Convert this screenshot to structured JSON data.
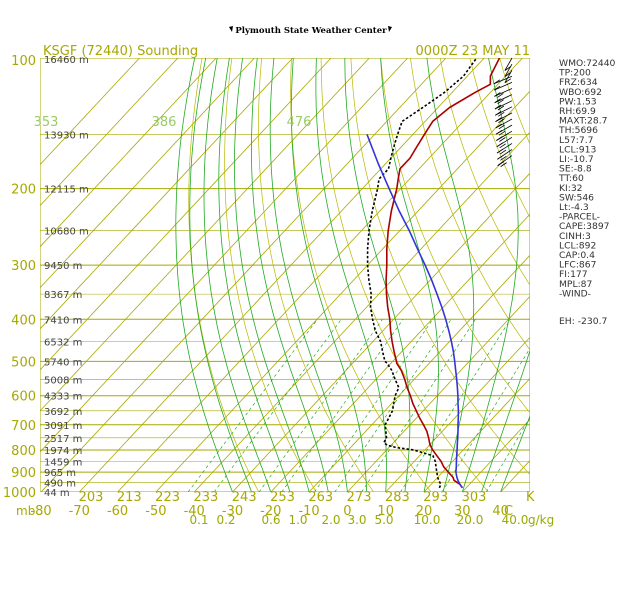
{
  "header": {
    "title": "Plymouth State Weather Center"
  },
  "chart_data": {
    "type": "line",
    "title": "KSGF (72440) Sounding",
    "time_label": "0000Z 23 MAY 11",
    "pressure_ticks": [
      100,
      200,
      300,
      400,
      500,
      600,
      700,
      800,
      900,
      1000
    ],
    "pressure_unit": "mb",
    "kelvin_ticks": [
      "203",
      "213",
      "223",
      "233",
      "243",
      "253",
      "263",
      "273",
      "283",
      "293",
      "303"
    ],
    "kelvin_unit": "K",
    "celsius_ticks": [
      "-80",
      "-70",
      "-60",
      "-50",
      "-40",
      "-30",
      "-20",
      "-10",
      "0",
      "10",
      "20",
      "30",
      "40"
    ],
    "celsius_unit": "C",
    "mixing_ratio_ticks": [
      "0.1",
      "0.2",
      "0.6",
      "1.0",
      "2.0",
      "3.0",
      "5.0",
      "10.0",
      "20.0",
      "40.0"
    ],
    "mixing_ratio_unit": "g/kg",
    "theta_labels": [
      "353",
      "386",
      "476"
    ],
    "height_labels": [
      {
        "p": 100,
        "label": "16460 m"
      },
      {
        "p": 150,
        "label": "13930 m"
      },
      {
        "p": 200,
        "label": "12115 m"
      },
      {
        "p": 250,
        "label": "10680 m"
      },
      {
        "p": 300,
        "label": "9450 m"
      },
      {
        "p": 350,
        "label": "8367 m"
      },
      {
        "p": 400,
        "label": "7410 m"
      },
      {
        "p": 450,
        "label": "6532 m"
      },
      {
        "p": 500,
        "label": "5740 m"
      },
      {
        "p": 550,
        "label": "5008 m"
      },
      {
        "p": 600,
        "label": "4333 m"
      },
      {
        "p": 650,
        "label": "3692 m"
      },
      {
        "p": 700,
        "label": "3091 m"
      },
      {
        "p": 750,
        "label": "2517 m"
      },
      {
        "p": 800,
        "label": "1974 m"
      },
      {
        "p": 850,
        "label": "1459 m"
      },
      {
        "p": 900,
        "label": "965 m"
      },
      {
        "p": 950,
        "label": "490 m"
      },
      {
        "p": 1000,
        "label": "44 m"
      }
    ],
    "series": [
      {
        "name": "temperature",
        "color": "#aa0000",
        "points": [
          [
            978,
            29
          ],
          [
            960,
            27.5
          ],
          [
            940,
            25
          ],
          [
            925,
            24
          ],
          [
            900,
            21.5
          ],
          [
            875,
            19
          ],
          [
            850,
            17
          ],
          [
            825,
            14.5
          ],
          [
            800,
            12
          ],
          [
            775,
            9.8
          ],
          [
            750,
            8
          ],
          [
            725,
            6
          ],
          [
            700,
            3.5
          ],
          [
            675,
            0.8
          ],
          [
            650,
            -1.8
          ],
          [
            625,
            -4.5
          ],
          [
            600,
            -7
          ],
          [
            575,
            -9.8
          ],
          [
            550,
            -12.5
          ],
          [
            525,
            -15.5
          ],
          [
            505,
            -18.5
          ],
          [
            500,
            -19
          ],
          [
            475,
            -22
          ],
          [
            450,
            -25
          ],
          [
            425,
            -28
          ],
          [
            400,
            -31
          ],
          [
            375,
            -34.5
          ],
          [
            350,
            -38
          ],
          [
            325,
            -41.5
          ],
          [
            300,
            -45
          ],
          [
            275,
            -49
          ],
          [
            250,
            -53
          ],
          [
            225,
            -57
          ],
          [
            200,
            -61
          ],
          [
            190,
            -63
          ],
          [
            180,
            -65
          ],
          [
            170,
            -65
          ],
          [
            160,
            -66
          ],
          [
            150,
            -67
          ],
          [
            140,
            -68
          ],
          [
            130,
            -67
          ],
          [
            120,
            -64
          ],
          [
            115,
            -62
          ],
          [
            110,
            -64
          ],
          [
            100,
            -66
          ]
        ]
      },
      {
        "name": "dewpoint",
        "color": "#000000",
        "dashed": true,
        "points": [
          [
            978,
            23
          ],
          [
            960,
            22.5
          ],
          [
            940,
            21
          ],
          [
            925,
            20
          ],
          [
            900,
            18.5
          ],
          [
            875,
            17
          ],
          [
            850,
            15.5
          ],
          [
            825,
            13.5
          ],
          [
            800,
            7
          ],
          [
            790,
            2
          ],
          [
            780,
            -1
          ],
          [
            770,
            -2.5
          ],
          [
            750,
            -3
          ],
          [
            700,
            -6.5
          ],
          [
            650,
            -8
          ],
          [
            600,
            -11
          ],
          [
            575,
            -12
          ],
          [
            550,
            -15
          ],
          [
            525,
            -18
          ],
          [
            505,
            -21
          ],
          [
            500,
            -22
          ],
          [
            475,
            -25
          ],
          [
            450,
            -28
          ],
          [
            425,
            -32
          ],
          [
            400,
            -35.5
          ],
          [
            375,
            -39
          ],
          [
            350,
            -42
          ],
          [
            325,
            -46
          ],
          [
            300,
            -50
          ],
          [
            275,
            -54
          ],
          [
            250,
            -58
          ],
          [
            225,
            -62
          ],
          [
            200,
            -66
          ],
          [
            190,
            -68
          ],
          [
            180,
            -68
          ],
          [
            170,
            -70
          ],
          [
            160,
            -72
          ],
          [
            150,
            -74
          ],
          [
            140,
            -76
          ],
          [
            130,
            -74
          ],
          [
            120,
            -72
          ],
          [
            110,
            -71
          ],
          [
            100,
            -72
          ]
        ]
      },
      {
        "name": "parcel",
        "color": "#3333dd",
        "points": [
          [
            978,
            29
          ],
          [
            960,
            27.5
          ],
          [
            940,
            26
          ],
          [
            925,
            25
          ],
          [
            900,
            23.5
          ],
          [
            875,
            22.3
          ],
          [
            850,
            21
          ],
          [
            825,
            19.7
          ],
          [
            800,
            18.4
          ],
          [
            775,
            17
          ],
          [
            750,
            15.6
          ],
          [
            725,
            14.1
          ],
          [
            700,
            12.5
          ],
          [
            675,
            10.9
          ],
          [
            650,
            9.2
          ],
          [
            625,
            7.3
          ],
          [
            600,
            5.4
          ],
          [
            575,
            3.3
          ],
          [
            550,
            1.1
          ],
          [
            525,
            -1.3
          ],
          [
            500,
            -3.8
          ],
          [
            475,
            -6.5
          ],
          [
            450,
            -9.5
          ],
          [
            425,
            -12.8
          ],
          [
            400,
            -16.4
          ],
          [
            375,
            -20.4
          ],
          [
            350,
            -24.8
          ],
          [
            325,
            -29.6
          ],
          [
            300,
            -35
          ],
          [
            275,
            -41
          ],
          [
            250,
            -47.5
          ],
          [
            225,
            -55
          ],
          [
            200,
            -63
          ],
          [
            175,
            -72
          ],
          [
            150,
            -82
          ]
        ]
      }
    ],
    "indices": [
      "WMO:72440",
      "TP:200",
      "FRZ:634",
      "WBO:692",
      "PW:1.53",
      "RH:69.9",
      "MAXT:28.7",
      "TH:5696",
      "L57:7.7",
      "LCL:913",
      "LI:-10.7",
      "SE:-8.8",
      "TT:60",
      "KI:32",
      "SW:546",
      "Lt:-4.3",
      "-PARCEL-",
      "CAPE:3897",
      "CINH:3",
      "LCL:892",
      "CAP:0.4",
      "LFC:867",
      "FI:177",
      "MPL:87",
      "-WIND-",
      "EH: -230.7"
    ],
    "wind_barbs_count": 17
  },
  "colors": {
    "isobar": "#a8a800",
    "isotherm": "#a8a800",
    "dry_adiabat": "#b8b800",
    "moist_adiabat": "#22aa22",
    "mixing_ratio": "#22aa22",
    "axis_label": "#a8a800"
  }
}
